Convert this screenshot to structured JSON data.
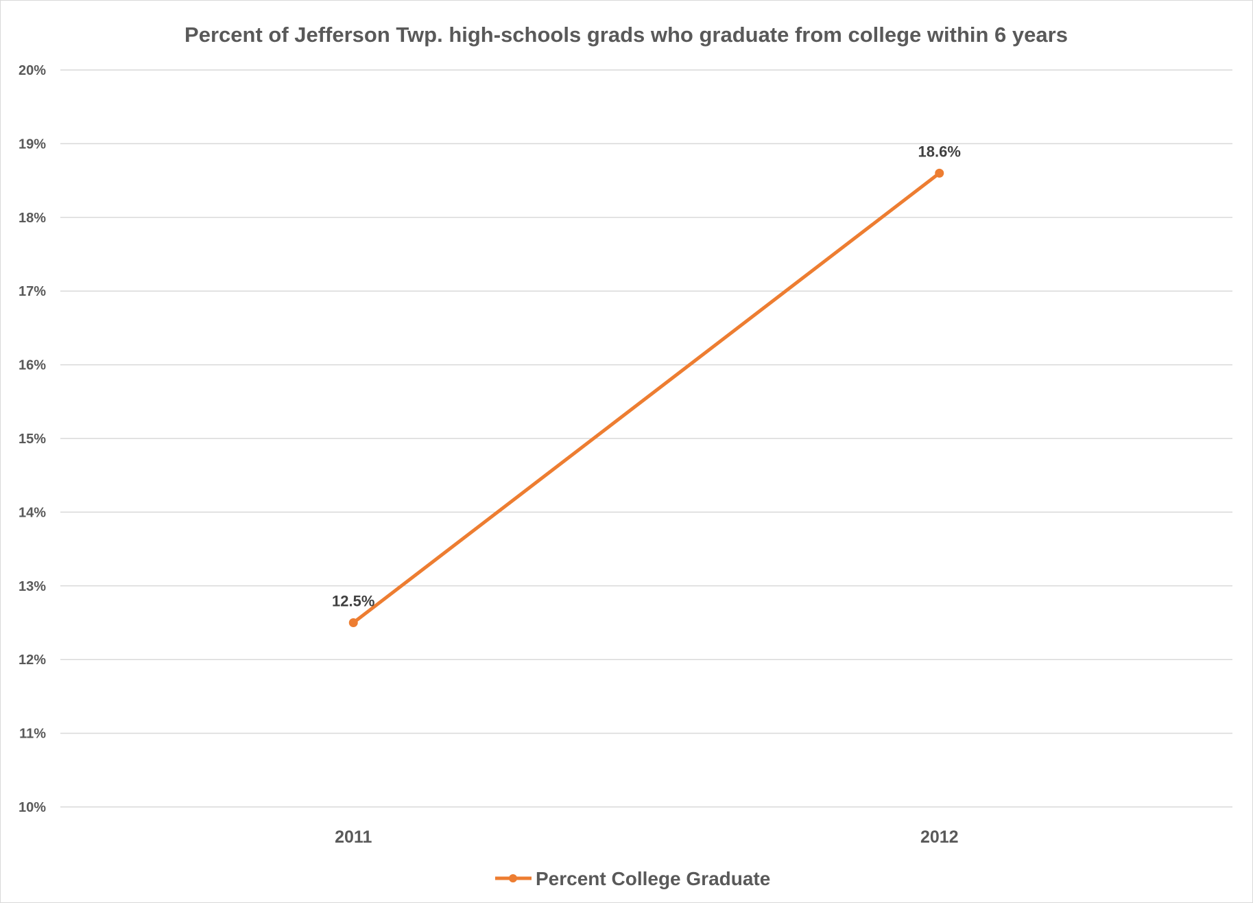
{
  "chart_data": {
    "type": "line",
    "title": "Percent of Jefferson Twp. high-schools grads who graduate from college within 6 years",
    "categories": [
      "2011",
      "2012"
    ],
    "series": [
      {
        "name": "Percent College Graduate",
        "values": [
          12.5,
          18.6
        ],
        "data_labels": [
          "12.5%",
          "18.6%"
        ],
        "color": "#ED7D31"
      }
    ],
    "xlabel": "",
    "ylabel": "",
    "ylim": [
      10,
      20
    ],
    "yticks": [
      10,
      11,
      12,
      13,
      14,
      15,
      16,
      17,
      18,
      19,
      20
    ],
    "ytick_labels": [
      "10%",
      "11%",
      "12%",
      "13%",
      "14%",
      "15%",
      "16%",
      "17%",
      "18%",
      "19%",
      "20%"
    ],
    "grid": true,
    "legend_position": "bottom"
  }
}
